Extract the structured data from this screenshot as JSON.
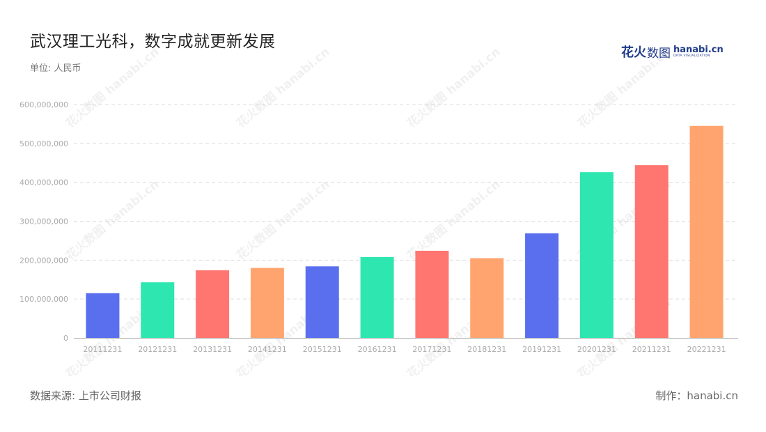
{
  "title": "武汉理工光科，数字成就更新发展",
  "unit_label": "单位: 人民币",
  "source": "数据来源: 上市公司财报",
  "credit": "制作：hanabi.cn",
  "logo": {
    "brand_cn_bold": "花火",
    "brand_cn": "数图",
    "brand_en": "hanabi.cn",
    "brand_en_sub": "DATA VISUALIZATION"
  },
  "watermark_text": "花火数图 hanabi.cn",
  "colors": {
    "blue": "#5a6fee",
    "green": "#2ee6b0",
    "red": "#ff7670",
    "orange": "#ffa46e",
    "grid": "#dddddd",
    "axis": "#bbbbbb",
    "tick": "#aaaaaa"
  },
  "chart_data": {
    "type": "bar",
    "categories": [
      "20111231",
      "20121231",
      "20131231",
      "20141231",
      "20151231",
      "20161231",
      "20171231",
      "20181231",
      "20191231",
      "20201231",
      "20211231",
      "20221231"
    ],
    "values": [
      115000000,
      143000000,
      174000000,
      180000000,
      184000000,
      208000000,
      224000000,
      205000000,
      269000000,
      426000000,
      444000000,
      545000000
    ],
    "bar_colors": [
      "#5a6fee",
      "#2ee6b0",
      "#ff7670",
      "#ffa46e",
      "#5a6fee",
      "#2ee6b0",
      "#ff7670",
      "#ffa46e",
      "#5a6fee",
      "#2ee6b0",
      "#ff7670",
      "#ffa46e"
    ],
    "ylim": [
      0,
      600000000
    ],
    "yticks": [
      0,
      100000000,
      200000000,
      300000000,
      400000000,
      500000000,
      600000000
    ],
    "ytick_labels": [
      "0",
      "100,000,000",
      "200,000,000",
      "300,000,000",
      "400,000,000",
      "500,000,000",
      "600,000,000"
    ],
    "grid": true,
    "legend": "none"
  }
}
